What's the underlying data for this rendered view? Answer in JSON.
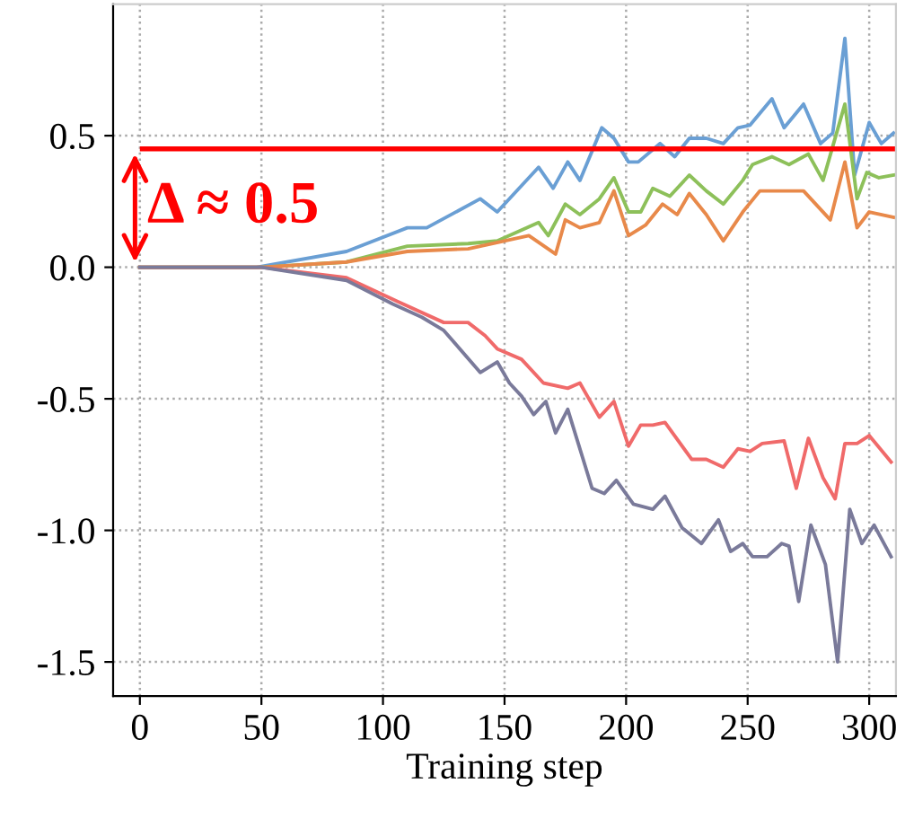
{
  "chart_data": {
    "type": "line",
    "xlabel": "Training step",
    "xlim": [
      -11,
      311
    ],
    "ylim": [
      -1.63,
      1.0
    ],
    "xticks": [
      0,
      50,
      100,
      150,
      200,
      250,
      300
    ],
    "yticks": [
      -1.5,
      {
        "value": -1,
        "label": "-1.0"
      },
      -0.5,
      {
        "value": 0,
        "label": "0.0"
      },
      0.5
    ],
    "grid": true,
    "line_style": "solid",
    "series": [
      {
        "color": "#6a9fd4",
        "x": [
          0,
          48,
          85,
          110,
          118,
          140,
          147,
          164,
          170,
          176,
          181,
          190,
          195,
          201,
          205,
          214,
          220,
          226,
          233,
          240,
          246,
          251,
          260,
          265,
          273,
          280,
          285,
          290,
          294,
          300,
          305,
          310
        ],
        "values": [
          0,
          0,
          0.06,
          0.15,
          0.15,
          0.26,
          0.21,
          0.38,
          0.3,
          0.4,
          0.33,
          0.53,
          0.49,
          0.4,
          0.4,
          0.47,
          0.42,
          0.49,
          0.49,
          0.47,
          0.53,
          0.54,
          0.64,
          0.53,
          0.62,
          0.47,
          0.51,
          0.87,
          0.35,
          0.55,
          0.47,
          0.51
        ]
      },
      {
        "color": "#8dc05a",
        "x": [
          0,
          50,
          85,
          110,
          135,
          147,
          164,
          168,
          175,
          181,
          189,
          195,
          201,
          206,
          211,
          218,
          226,
          233,
          240,
          248,
          252,
          260,
          267,
          275,
          281,
          290,
          295,
          299,
          304,
          310
        ],
        "values": [
          0,
          0,
          0.02,
          0.08,
          0.09,
          0.1,
          0.17,
          0.12,
          0.24,
          0.2,
          0.26,
          0.34,
          0.21,
          0.21,
          0.3,
          0.27,
          0.35,
          0.29,
          0.24,
          0.33,
          0.39,
          0.42,
          0.39,
          0.43,
          0.33,
          0.62,
          0.26,
          0.36,
          0.34,
          0.35
        ]
      },
      {
        "color": "#e8894a",
        "x": [
          0,
          50,
          85,
          110,
          135,
          160,
          171,
          175,
          181,
          189,
          195,
          201,
          208,
          215,
          221,
          226,
          233,
          240,
          248,
          255,
          265,
          273,
          284,
          290,
          295,
          300,
          310
        ],
        "values": [
          0,
          0,
          0.02,
          0.06,
          0.07,
          0.12,
          0.05,
          0.18,
          0.15,
          0.17,
          0.29,
          0.12,
          0.16,
          0.24,
          0.2,
          0.28,
          0.2,
          0.1,
          0.21,
          0.29,
          0.29,
          0.29,
          0.18,
          0.4,
          0.15,
          0.21,
          0.19
        ]
      },
      {
        "color": "#f06a6a",
        "x": [
          0,
          50,
          85,
          106,
          125,
          135,
          142,
          147,
          157,
          166,
          176,
          181,
          189,
          195,
          201,
          206,
          211,
          216,
          227,
          233,
          240,
          246,
          251,
          256,
          265,
          270,
          275,
          281,
          286,
          290,
          295,
          300,
          309
        ],
        "values": [
          0,
          0,
          -0.04,
          -0.13,
          -0.21,
          -0.21,
          -0.26,
          -0.31,
          -0.35,
          -0.44,
          -0.46,
          -0.44,
          -0.57,
          -0.51,
          -0.68,
          -0.6,
          -0.6,
          -0.59,
          -0.73,
          -0.73,
          -0.76,
          -0.69,
          -0.7,
          -0.67,
          -0.66,
          -0.84,
          -0.65,
          -0.8,
          -0.88,
          -0.67,
          -0.67,
          -0.64,
          -0.74
        ]
      },
      {
        "color": "#7a7a9a",
        "x": [
          0,
          50,
          85,
          104,
          116,
          125,
          140,
          147,
          152,
          157,
          162,
          167,
          171,
          176,
          186,
          191,
          196,
          203,
          211,
          216,
          223,
          231,
          238,
          243,
          248,
          252,
          258,
          264,
          267,
          271,
          276,
          282,
          287,
          292,
          297,
          302,
          309
        ],
        "values": [
          0,
          0,
          -0.05,
          -0.14,
          -0.19,
          -0.24,
          -0.4,
          -0.36,
          -0.44,
          -0.49,
          -0.56,
          -0.51,
          -0.63,
          -0.54,
          -0.84,
          -0.86,
          -0.81,
          -0.9,
          -0.92,
          -0.87,
          -0.99,
          -1.05,
          -0.96,
          -1.08,
          -1.05,
          -1.1,
          -1.1,
          -1.05,
          -1.06,
          -1.27,
          -0.98,
          -1.13,
          -1.5,
          -0.92,
          -1.05,
          -0.98,
          -1.1
        ]
      }
    ],
    "ref_lines": [
      {
        "axis": "y",
        "value": 0.45,
        "color": "#ff0000",
        "line_style": "solid"
      }
    ],
    "annotations": [
      {
        "text": "Δ ≈ 0.5",
        "x": 0,
        "y": 0.45
      }
    ]
  }
}
